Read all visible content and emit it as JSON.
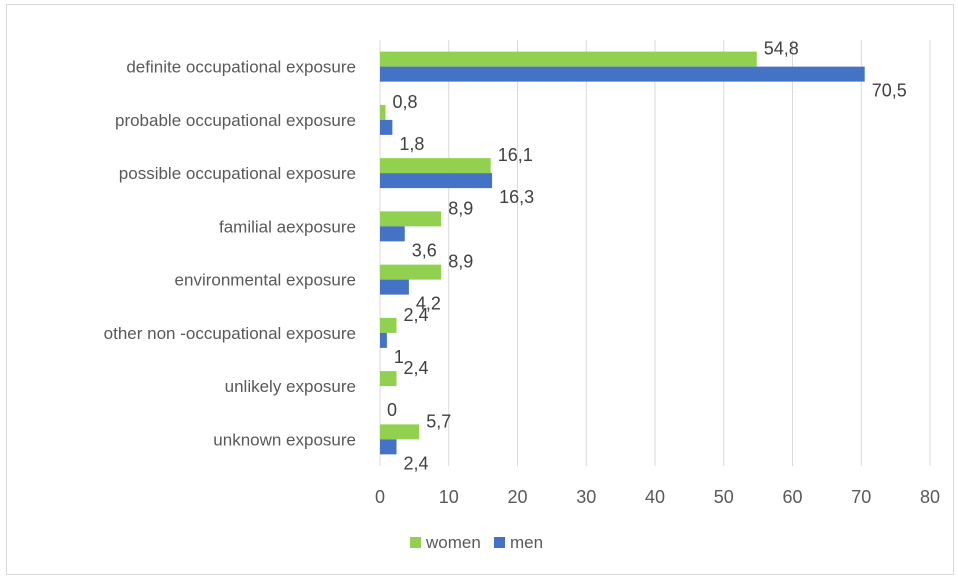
{
  "chart_data": {
    "type": "bar",
    "orientation": "horizontal",
    "categories": [
      "definite occupational exposure",
      "probable occupational exposure",
      "possible occupational exposure",
      "familial aexposure",
      "environmental exposure",
      "other non -occupational exposure",
      "unlikely exposure",
      "unknown exposure"
    ],
    "series": [
      {
        "name": "women",
        "color": "#92d050",
        "values": [
          54.8,
          0.8,
          16.1,
          8.9,
          8.9,
          2.4,
          2.4,
          5.7
        ],
        "labels": [
          "54,8",
          "0,8",
          "16,1",
          "8,9",
          "8,9",
          "2,4",
          "2,4",
          "5,7"
        ]
      },
      {
        "name": "men",
        "color": "#4472c4",
        "values": [
          70.5,
          1.8,
          16.3,
          3.6,
          4.2,
          1,
          0,
          2.4
        ],
        "labels": [
          "70,5",
          "1,8",
          "16,3",
          "3,6",
          "4,2",
          "1",
          "0",
          "2,4"
        ]
      }
    ],
    "xlim": [
      0,
      80
    ],
    "xticks": [
      "0",
      "10",
      "20",
      "30",
      "40",
      "50",
      "60",
      "70",
      "80"
    ],
    "grid": true,
    "legend_position": "bottom",
    "title": "",
    "xlabel": "",
    "ylabel": ""
  }
}
